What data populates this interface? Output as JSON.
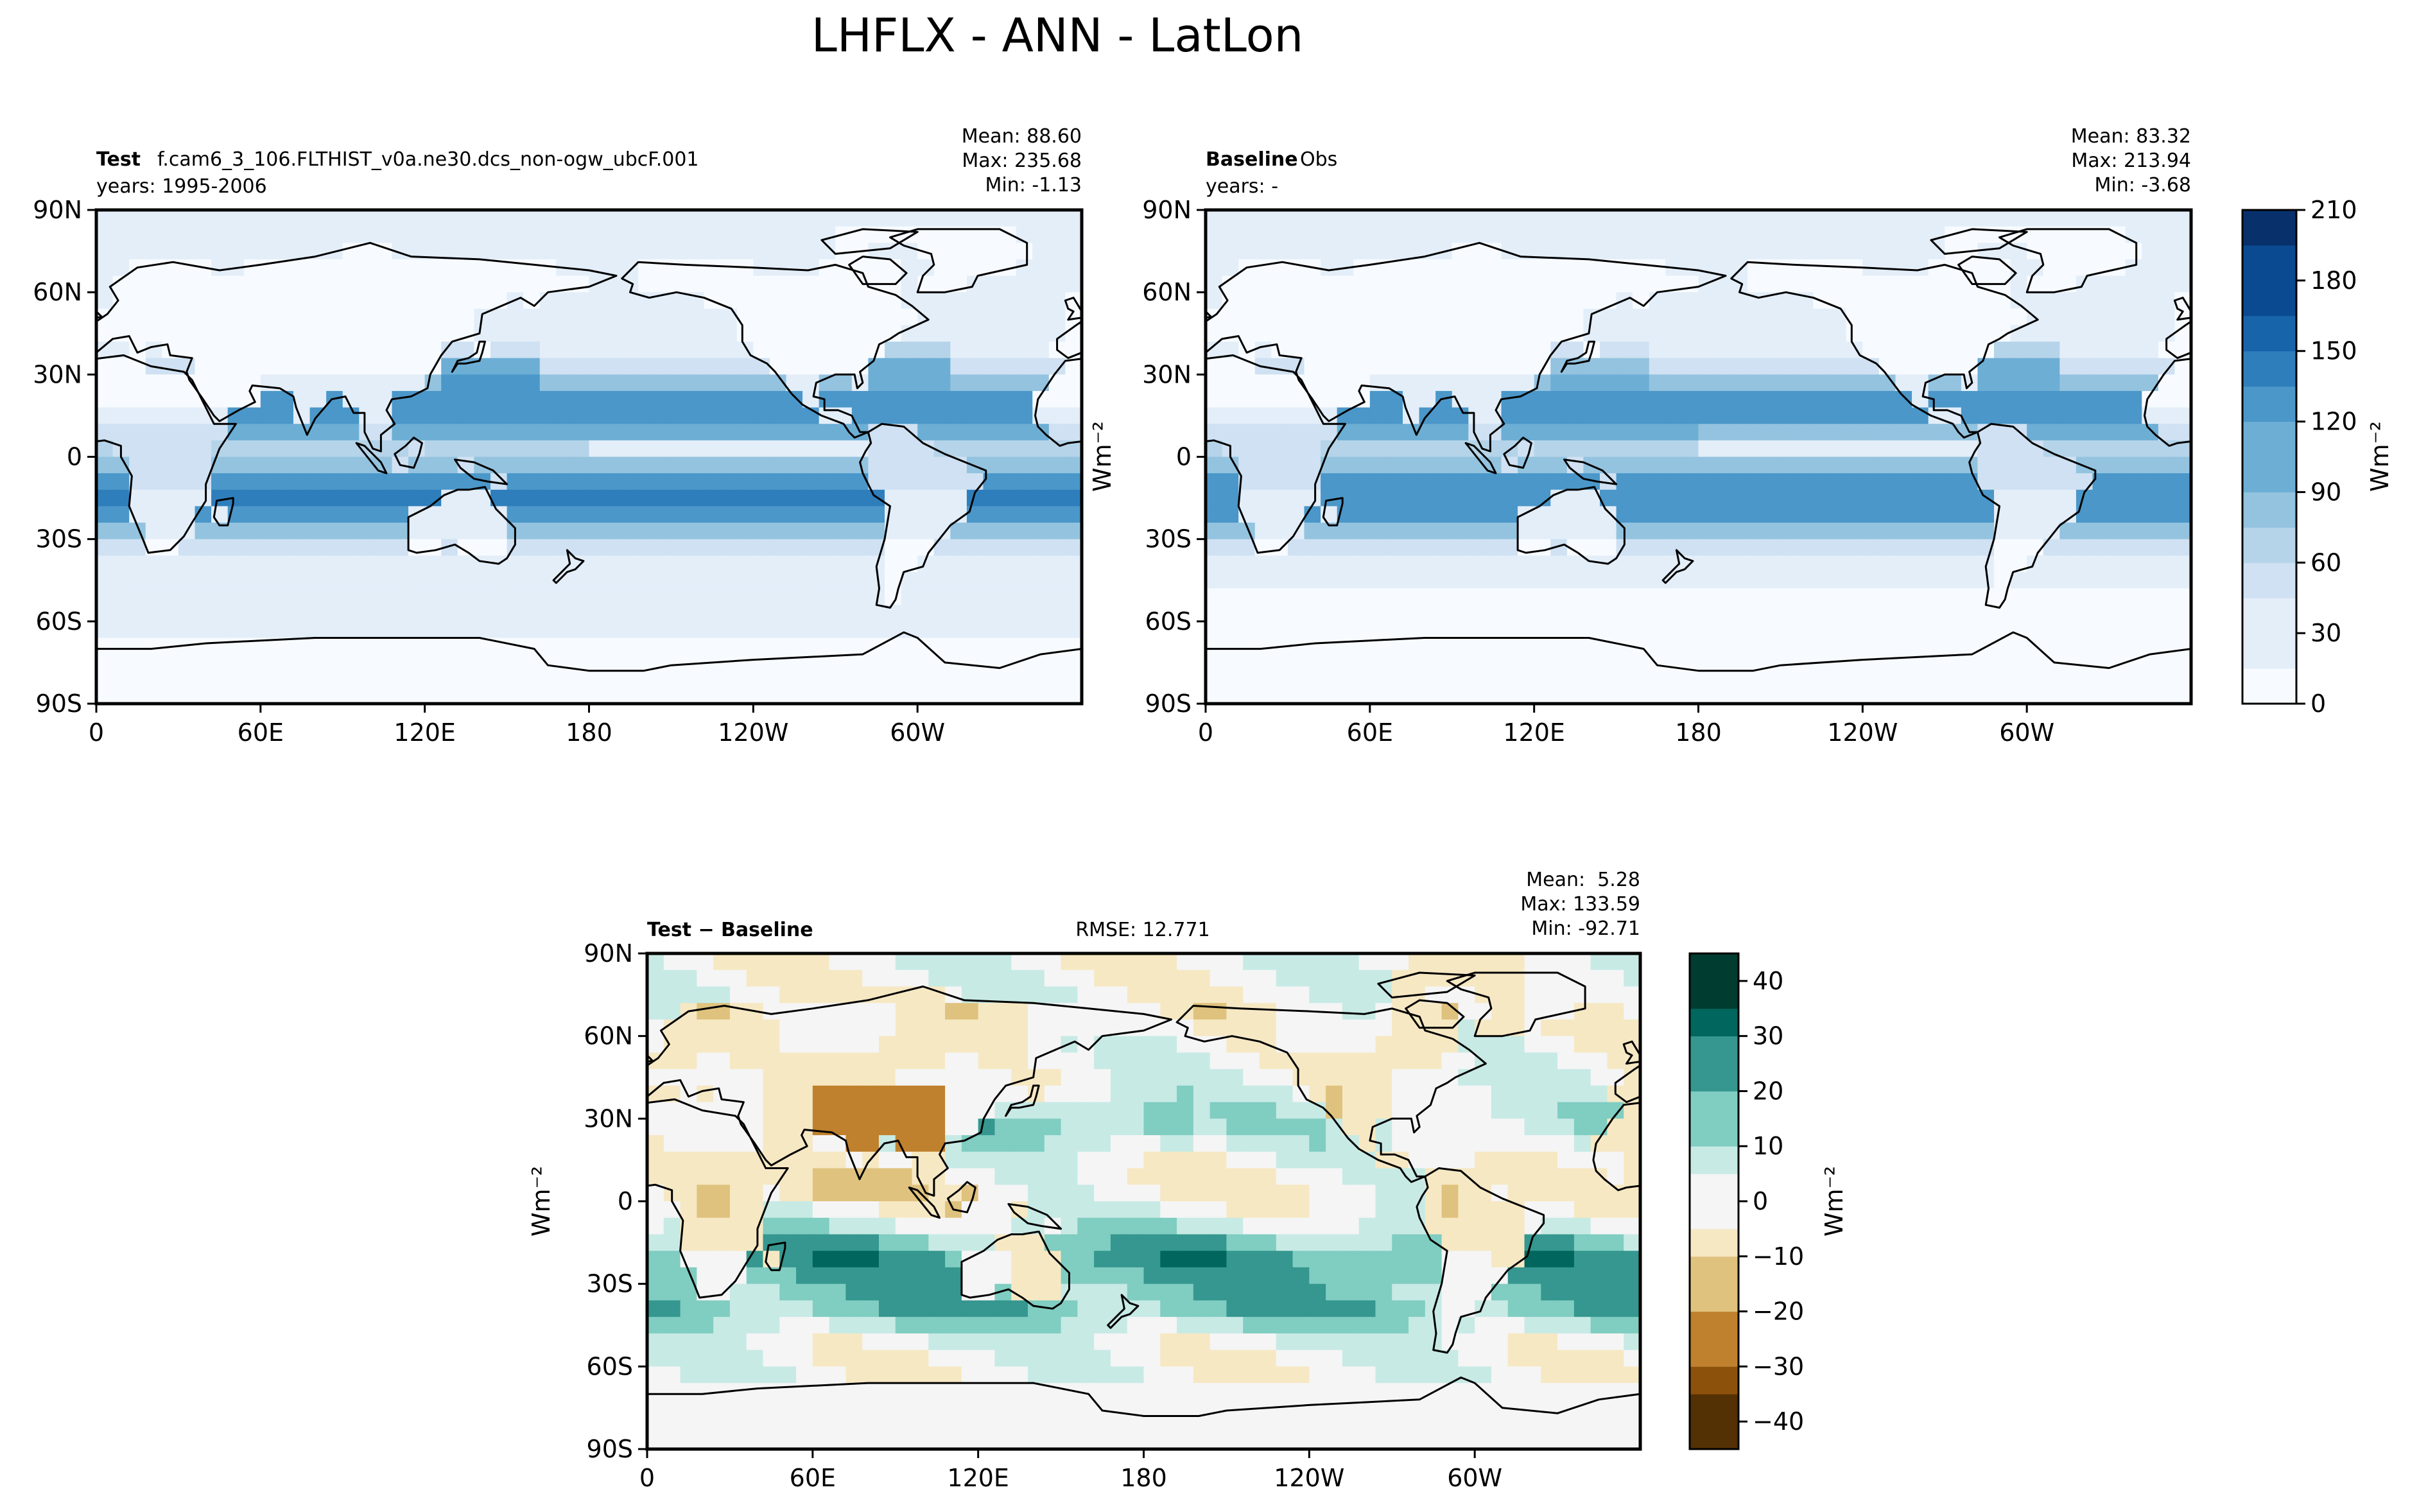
{
  "figure": {
    "title": "LHFLX - ANN - LatLon"
  },
  "colors": {
    "sequential_blues": [
      "#f7fbff",
      "#e3eef9",
      "#cfe1f2",
      "#b5d4e9",
      "#93c3df",
      "#6daed5",
      "#4b97c9",
      "#2f7ebc",
      "#1864aa",
      "#0a4a90",
      "#08306b"
    ],
    "diverging_brbg": [
      "#543005",
      "#8c510a",
      "#bf812d",
      "#dfc27d",
      "#f6e8c3",
      "#f5f5f5",
      "#c7eae5",
      "#80cdc1",
      "#35978f",
      "#01665e",
      "#003c30"
    ],
    "land_outline": "#000000"
  },
  "chart_data": [
    {
      "type": "heatmap",
      "panel": "test",
      "label_bold": "Test",
      "label_text": "f.cam6_3_106.FLTHIST_v0a.ne30.dcs_non-ogw_ubcF.001",
      "subtitle": "years: 1995-2006",
      "stats": {
        "mean": "Mean: 88.60",
        "max": "Max: 235.68",
        "min": "Min: -1.13"
      },
      "xticks": [
        "0",
        "60E",
        "120E",
        "180",
        "120W",
        "60W"
      ],
      "yticks": [
        "90N",
        "60N",
        "30N",
        "0",
        "30S",
        "60S",
        "90S"
      ],
      "xlim": [
        0,
        360
      ],
      "ylim": [
        -90,
        90
      ],
      "colorscale": "Blues",
      "zlim": [
        0,
        210
      ],
      "grid": false
    },
    {
      "type": "heatmap",
      "panel": "baseline",
      "label_bold": "Baseline",
      "label_text": "Obs",
      "subtitle": "years: -",
      "stats": {
        "mean": "Mean: 83.32",
        "max": "Max: 213.94",
        "min": "Min: -3.68"
      },
      "xticks": [
        "0",
        "60E",
        "120E",
        "180",
        "120W",
        "60W"
      ],
      "yticks": [
        "90N",
        "60N",
        "30N",
        "0",
        "30S",
        "60S",
        "90S"
      ],
      "xlim": [
        0,
        360
      ],
      "ylim": [
        -90,
        90
      ],
      "colorscale": "Blues",
      "zlim": [
        0,
        210
      ],
      "grid": false
    },
    {
      "type": "heatmap",
      "panel": "difference",
      "label_bold": "Test − Baseline",
      "rmse": "RMSE: 12.771",
      "stats": {
        "mean": "Mean:  5.28",
        "max": "Max: 133.59",
        "min": "Min: -92.71"
      },
      "xticks": [
        "0",
        "60E",
        "120E",
        "180",
        "120W",
        "60W"
      ],
      "yticks": [
        "90N",
        "60N",
        "30N",
        "0",
        "30S",
        "60S",
        "90S"
      ],
      "xlim": [
        0,
        360
      ],
      "ylim": [
        -90,
        90
      ],
      "colorscale": "BrBG",
      "zlim": [
        -45,
        45
      ],
      "grid": false
    }
  ],
  "colorbars": [
    {
      "name": "top-colorbar",
      "ticks": [
        "0",
        "30",
        "60",
        "90",
        "120",
        "150",
        "180",
        "210"
      ],
      "tick_values": [
        0,
        30,
        60,
        90,
        120,
        150,
        180,
        210
      ],
      "range": [
        0,
        210
      ],
      "label": "Wm⁻²"
    },
    {
      "name": "diff-colorbar",
      "ticks": [
        "−40",
        "−30",
        "−20",
        "−10",
        "0",
        "10",
        "20",
        "30",
        "40"
      ],
      "tick_values": [
        -40,
        -30,
        -20,
        -10,
        0,
        10,
        20,
        30,
        40
      ],
      "range": [
        -45,
        45
      ],
      "label": "Wm⁻²"
    }
  ],
  "ylabel_units": "Wm⁻²"
}
